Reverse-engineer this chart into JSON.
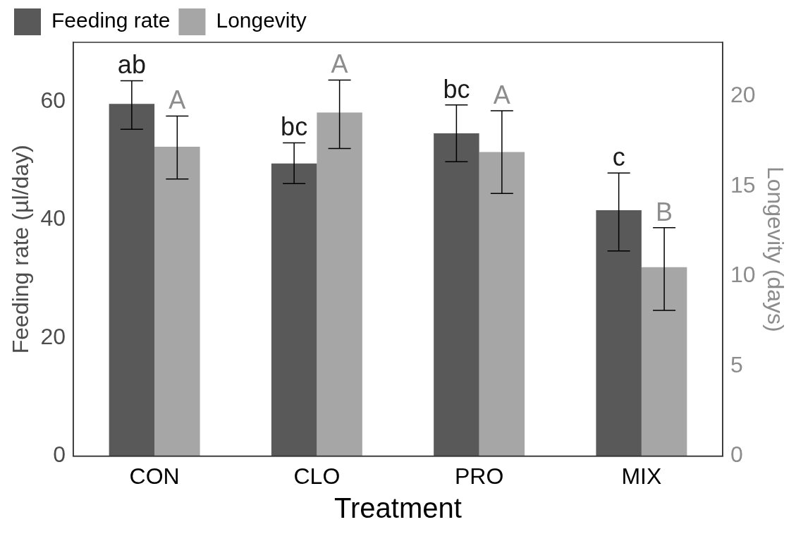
{
  "chart_data": {
    "type": "bar",
    "xlabel": "Treatment",
    "ylabel": "Feeding rate (µl/day)",
    "y2label": "Longevity (days)",
    "categories": [
      "CON",
      "CLO",
      "PRO",
      "MIX"
    ],
    "series": [
      {
        "name": "Feeding rate",
        "color": "#595959",
        "values": [
          59.6,
          49.5,
          54.6,
          41.6
        ],
        "errors": [
          [
            55.3,
            63.5
          ],
          [
            46.1,
            53.0
          ],
          [
            49.8,
            59.4
          ],
          [
            34.7,
            47.9
          ]
        ],
        "value_labels": [
          "ab",
          "bc",
          "bc",
          "c"
        ]
      },
      {
        "name": "Longevity",
        "color": "#a6a6a6",
        "axis": "y2",
        "values": [
          17.2,
          19.1,
          16.9,
          10.5
        ],
        "errors": [
          [
            15.4,
            18.9
          ],
          [
            17.1,
            20.9
          ],
          [
            14.6,
            19.2
          ],
          [
            8.1,
            12.7
          ]
        ],
        "value_labels": [
          "A",
          "A",
          "A",
          "B"
        ]
      }
    ],
    "ylim": [
      0,
      70
    ],
    "yticks": [
      0,
      20,
      40,
      60
    ],
    "y2lim": [
      0,
      23
    ],
    "y2ticks": [
      0,
      5,
      10,
      15,
      20
    ],
    "legend": "top left",
    "grid": false
  }
}
